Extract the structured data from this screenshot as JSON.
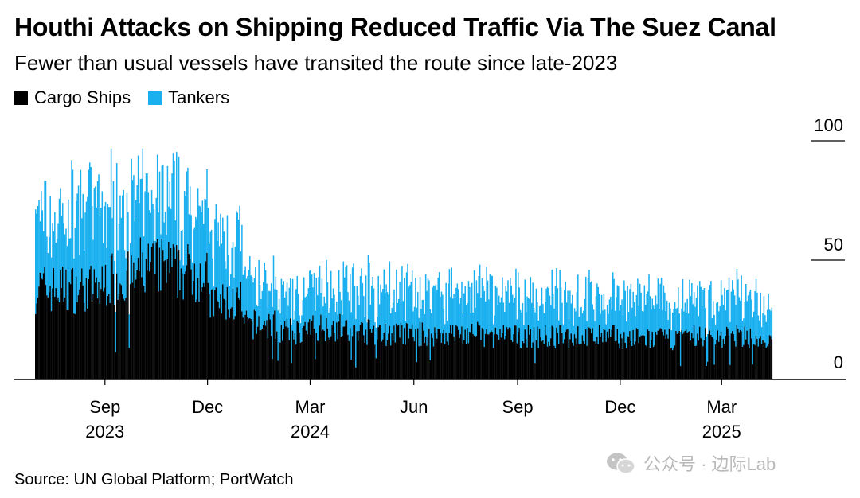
{
  "chart_data": {
    "type": "bar",
    "stacked": true,
    "title": "Houthi Attacks on Shipping Reduced Traffic Via The Suez Canal",
    "subtitle": "Fewer than usual vessels have transited the route since late-2023",
    "source": "Source: UN Global Platform; PortWatch",
    "xlabel": "",
    "ylabel": "",
    "ylim": [
      0,
      100
    ],
    "y_ticks": [
      0,
      50,
      100
    ],
    "y_axis_side": "right",
    "grid": false,
    "legend_position": "top-left",
    "x_range": [
      "2023-07-01",
      "2025-04-15"
    ],
    "x_ticks": [
      {
        "date": "2023-09-01",
        "label": "Sep",
        "year": "2023"
      },
      {
        "date": "2023-12-01",
        "label": "Dec",
        "year": ""
      },
      {
        "date": "2024-03-01",
        "label": "Mar",
        "year": "2024"
      },
      {
        "date": "2024-06-01",
        "label": "Jun",
        "year": ""
      },
      {
        "date": "2024-09-01",
        "label": "Sep",
        "year": ""
      },
      {
        "date": "2024-12-01",
        "label": "Dec",
        "year": ""
      },
      {
        "date": "2025-03-01",
        "label": "Mar",
        "year": "2025"
      }
    ],
    "series": [
      {
        "name": "Cargo Ships",
        "color": "#000000"
      },
      {
        "name": "Tankers",
        "color": "#1ab0f0"
      }
    ],
    "monthly_avg": [
      {
        "month": "2023-07",
        "cargo": 38,
        "tankers": 30
      },
      {
        "month": "2023-08",
        "cargo": 38,
        "tankers": 32
      },
      {
        "month": "2023-09",
        "cargo": 42,
        "tankers": 31
      },
      {
        "month": "2023-10",
        "cargo": 47,
        "tankers": 29
      },
      {
        "month": "2023-11",
        "cargo": 45,
        "tankers": 26
      },
      {
        "month": "2023-12",
        "cargo": 32,
        "tankers": 26
      },
      {
        "month": "2024-01",
        "cargo": 23,
        "tankers": 17
      },
      {
        "month": "2024-02",
        "cargo": 20,
        "tankers": 16
      },
      {
        "month": "2024-03",
        "cargo": 22,
        "tankers": 18
      },
      {
        "month": "2024-04",
        "cargo": 20,
        "tankers": 19
      },
      {
        "month": "2024-05",
        "cargo": 19,
        "tankers": 18
      },
      {
        "month": "2024-06",
        "cargo": 19,
        "tankers": 17
      },
      {
        "month": "2024-07",
        "cargo": 19,
        "tankers": 18
      },
      {
        "month": "2024-08",
        "cargo": 18,
        "tankers": 17
      },
      {
        "month": "2024-09",
        "cargo": 18,
        "tankers": 17
      },
      {
        "month": "2024-10",
        "cargo": 18,
        "tankers": 17
      },
      {
        "month": "2024-11",
        "cargo": 18,
        "tankers": 16
      },
      {
        "month": "2024-12",
        "cargo": 17,
        "tankers": 16
      },
      {
        "month": "2025-01",
        "cargo": 17,
        "tankers": 15
      },
      {
        "month": "2025-02",
        "cargo": 18,
        "tankers": 16
      },
      {
        "month": "2025-03",
        "cargo": 18,
        "tankers": 16
      },
      {
        "month": "2025-04",
        "cargo": 15,
        "tankers": 14
      }
    ]
  },
  "watermark": {
    "text": "公众号 · 边际Lab",
    "color": "#b9b9b9"
  }
}
